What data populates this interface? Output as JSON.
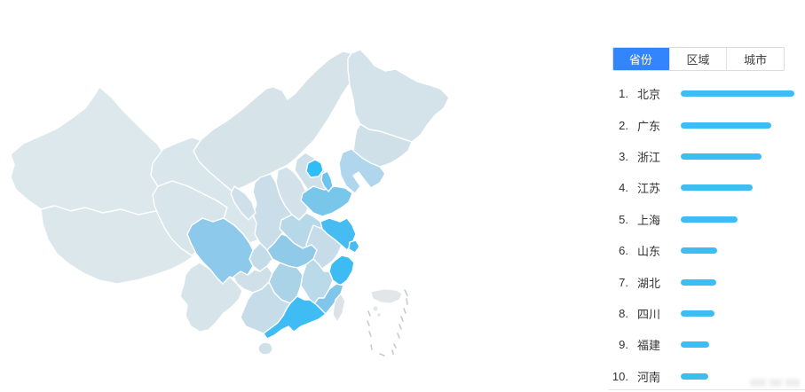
{
  "panel": {
    "tabs": [
      {
        "key": "province",
        "label": "省份",
        "active": true
      },
      {
        "key": "region",
        "label": "区域",
        "active": false
      },
      {
        "key": "city",
        "label": "城市",
        "active": false
      }
    ],
    "ranking": [
      {
        "rank": "1.",
        "name": "北京",
        "value": 100
      },
      {
        "rank": "2.",
        "name": "广东",
        "value": 80
      },
      {
        "rank": "3.",
        "name": "浙江",
        "value": 71
      },
      {
        "rank": "4.",
        "name": "江苏",
        "value": 63
      },
      {
        "rank": "5.",
        "name": "上海",
        "value": 50
      },
      {
        "rank": "6.",
        "name": "山东",
        "value": 32
      },
      {
        "rank": "7.",
        "name": "湖北",
        "value": 31
      },
      {
        "rank": "8.",
        "name": "四川",
        "value": 30
      },
      {
        "rank": "9.",
        "name": "福建",
        "value": 25
      },
      {
        "rank": "10.",
        "name": "河南",
        "value": 24
      }
    ],
    "colors": {
      "active_tab": "#3385fe",
      "active_tab_text": "#ffffff",
      "bar": "#3cbef4",
      "row_text": "#333333"
    }
  },
  "map": {
    "border_color": "#ffffff",
    "regions": [
      {
        "key": "xinjiang",
        "name": "新疆",
        "fill": "#dde8ed"
      },
      {
        "key": "xizang",
        "name": "西藏",
        "fill": "#dce7ec"
      },
      {
        "key": "neimenggu",
        "name": "内蒙古",
        "fill": "#d6e4ea"
      },
      {
        "key": "qinghai",
        "name": "青海",
        "fill": "#d8e5eb"
      },
      {
        "key": "gansu",
        "name": "甘肃",
        "fill": "#d9e6ec"
      },
      {
        "key": "heilongjiang",
        "name": "黑龙江",
        "fill": "#d4e2e9"
      },
      {
        "key": "jilin",
        "name": "吉林",
        "fill": "#cfe0e9"
      },
      {
        "key": "liaoning",
        "name": "辽宁",
        "fill": "#afd6ec"
      },
      {
        "key": "hebei",
        "name": "河北",
        "fill": "#cfe0ea"
      },
      {
        "key": "shanxi",
        "name": "山西",
        "fill": "#d3e2ea"
      },
      {
        "key": "shaanxi",
        "name": "陕西",
        "fill": "#c9dee9"
      },
      {
        "key": "ningxia",
        "name": "宁夏",
        "fill": "#cfe0ea"
      },
      {
        "key": "shandong",
        "name": "山东",
        "fill": "#79c6eb"
      },
      {
        "key": "henan",
        "name": "河南",
        "fill": "#b7d8e9"
      },
      {
        "key": "anhui",
        "name": "安徽",
        "fill": "#c6dde9"
      },
      {
        "key": "jiangsu",
        "name": "江苏",
        "fill": "#47bcf3"
      },
      {
        "key": "hubei",
        "name": "湖北",
        "fill": "#90cae9"
      },
      {
        "key": "chongqing",
        "name": "重庆",
        "fill": "#c4dce8"
      },
      {
        "key": "sichuan",
        "name": "四川",
        "fill": "#8cc9ea"
      },
      {
        "key": "guizhou",
        "name": "贵州",
        "fill": "#cfe0e9"
      },
      {
        "key": "yunnan",
        "name": "云南",
        "fill": "#d7e5eb"
      },
      {
        "key": "hunan",
        "name": "湖南",
        "fill": "#abd3e8"
      },
      {
        "key": "jiangxi",
        "name": "江西",
        "fill": "#bad9e9"
      },
      {
        "key": "zhejiang",
        "name": "浙江",
        "fill": "#3dbcf4"
      },
      {
        "key": "shanghai",
        "name": "上海",
        "fill": "#47bcf3"
      },
      {
        "key": "fujian",
        "name": "福建",
        "fill": "#7fc6ea"
      },
      {
        "key": "guangxi",
        "name": "广西",
        "fill": "#c6dce8"
      },
      {
        "key": "guangdong",
        "name": "广东",
        "fill": "#3fbcf4"
      },
      {
        "key": "hainan",
        "name": "海南",
        "fill": "#cfe0e9"
      },
      {
        "key": "taiwan",
        "name": "台湾",
        "fill": "#dde2e6"
      },
      {
        "key": "beijing",
        "name": "北京",
        "fill": "#2ebdf7"
      },
      {
        "key": "tianjin",
        "name": "天津",
        "fill": "#6ec4ee"
      }
    ],
    "inset": {
      "name": "南海诸岛",
      "island_fill": "#e2e6e8",
      "dash_color": "#c6cbcf"
    }
  },
  "chart_data": [
    {
      "type": "heatmap",
      "subtype": "china-choropleth",
      "title": "",
      "legend_position": "none",
      "regions_by_intensity": {
        "highest": [
          "北京"
        ],
        "high": [
          "广东",
          "浙江",
          "江苏",
          "上海"
        ],
        "medium": [
          "山东",
          "湖北",
          "四川",
          "福建",
          "天津"
        ],
        "medium_low": [
          "河南",
          "湖南",
          "辽宁",
          "江西",
          "安徽",
          "陕西",
          "广西",
          "重庆"
        ],
        "low": [
          "河北",
          "山西",
          "吉林",
          "贵州",
          "宁夏",
          "海南",
          "云南",
          "甘肃",
          "青海",
          "黑龙江",
          "内蒙古",
          "新疆",
          "西藏"
        ]
      }
    },
    {
      "type": "bar",
      "orientation": "horizontal",
      "categories": [
        "北京",
        "广东",
        "浙江",
        "江苏",
        "上海",
        "山东",
        "湖北",
        "四川",
        "福建",
        "河南"
      ],
      "values": [
        100,
        80,
        71,
        63,
        50,
        32,
        31,
        30,
        25,
        24
      ],
      "value_unit": "relative length, % of max (no numeric labels shown)",
      "title": "",
      "xlabel": "",
      "ylabel": "",
      "legend": false,
      "grid": false
    }
  ]
}
